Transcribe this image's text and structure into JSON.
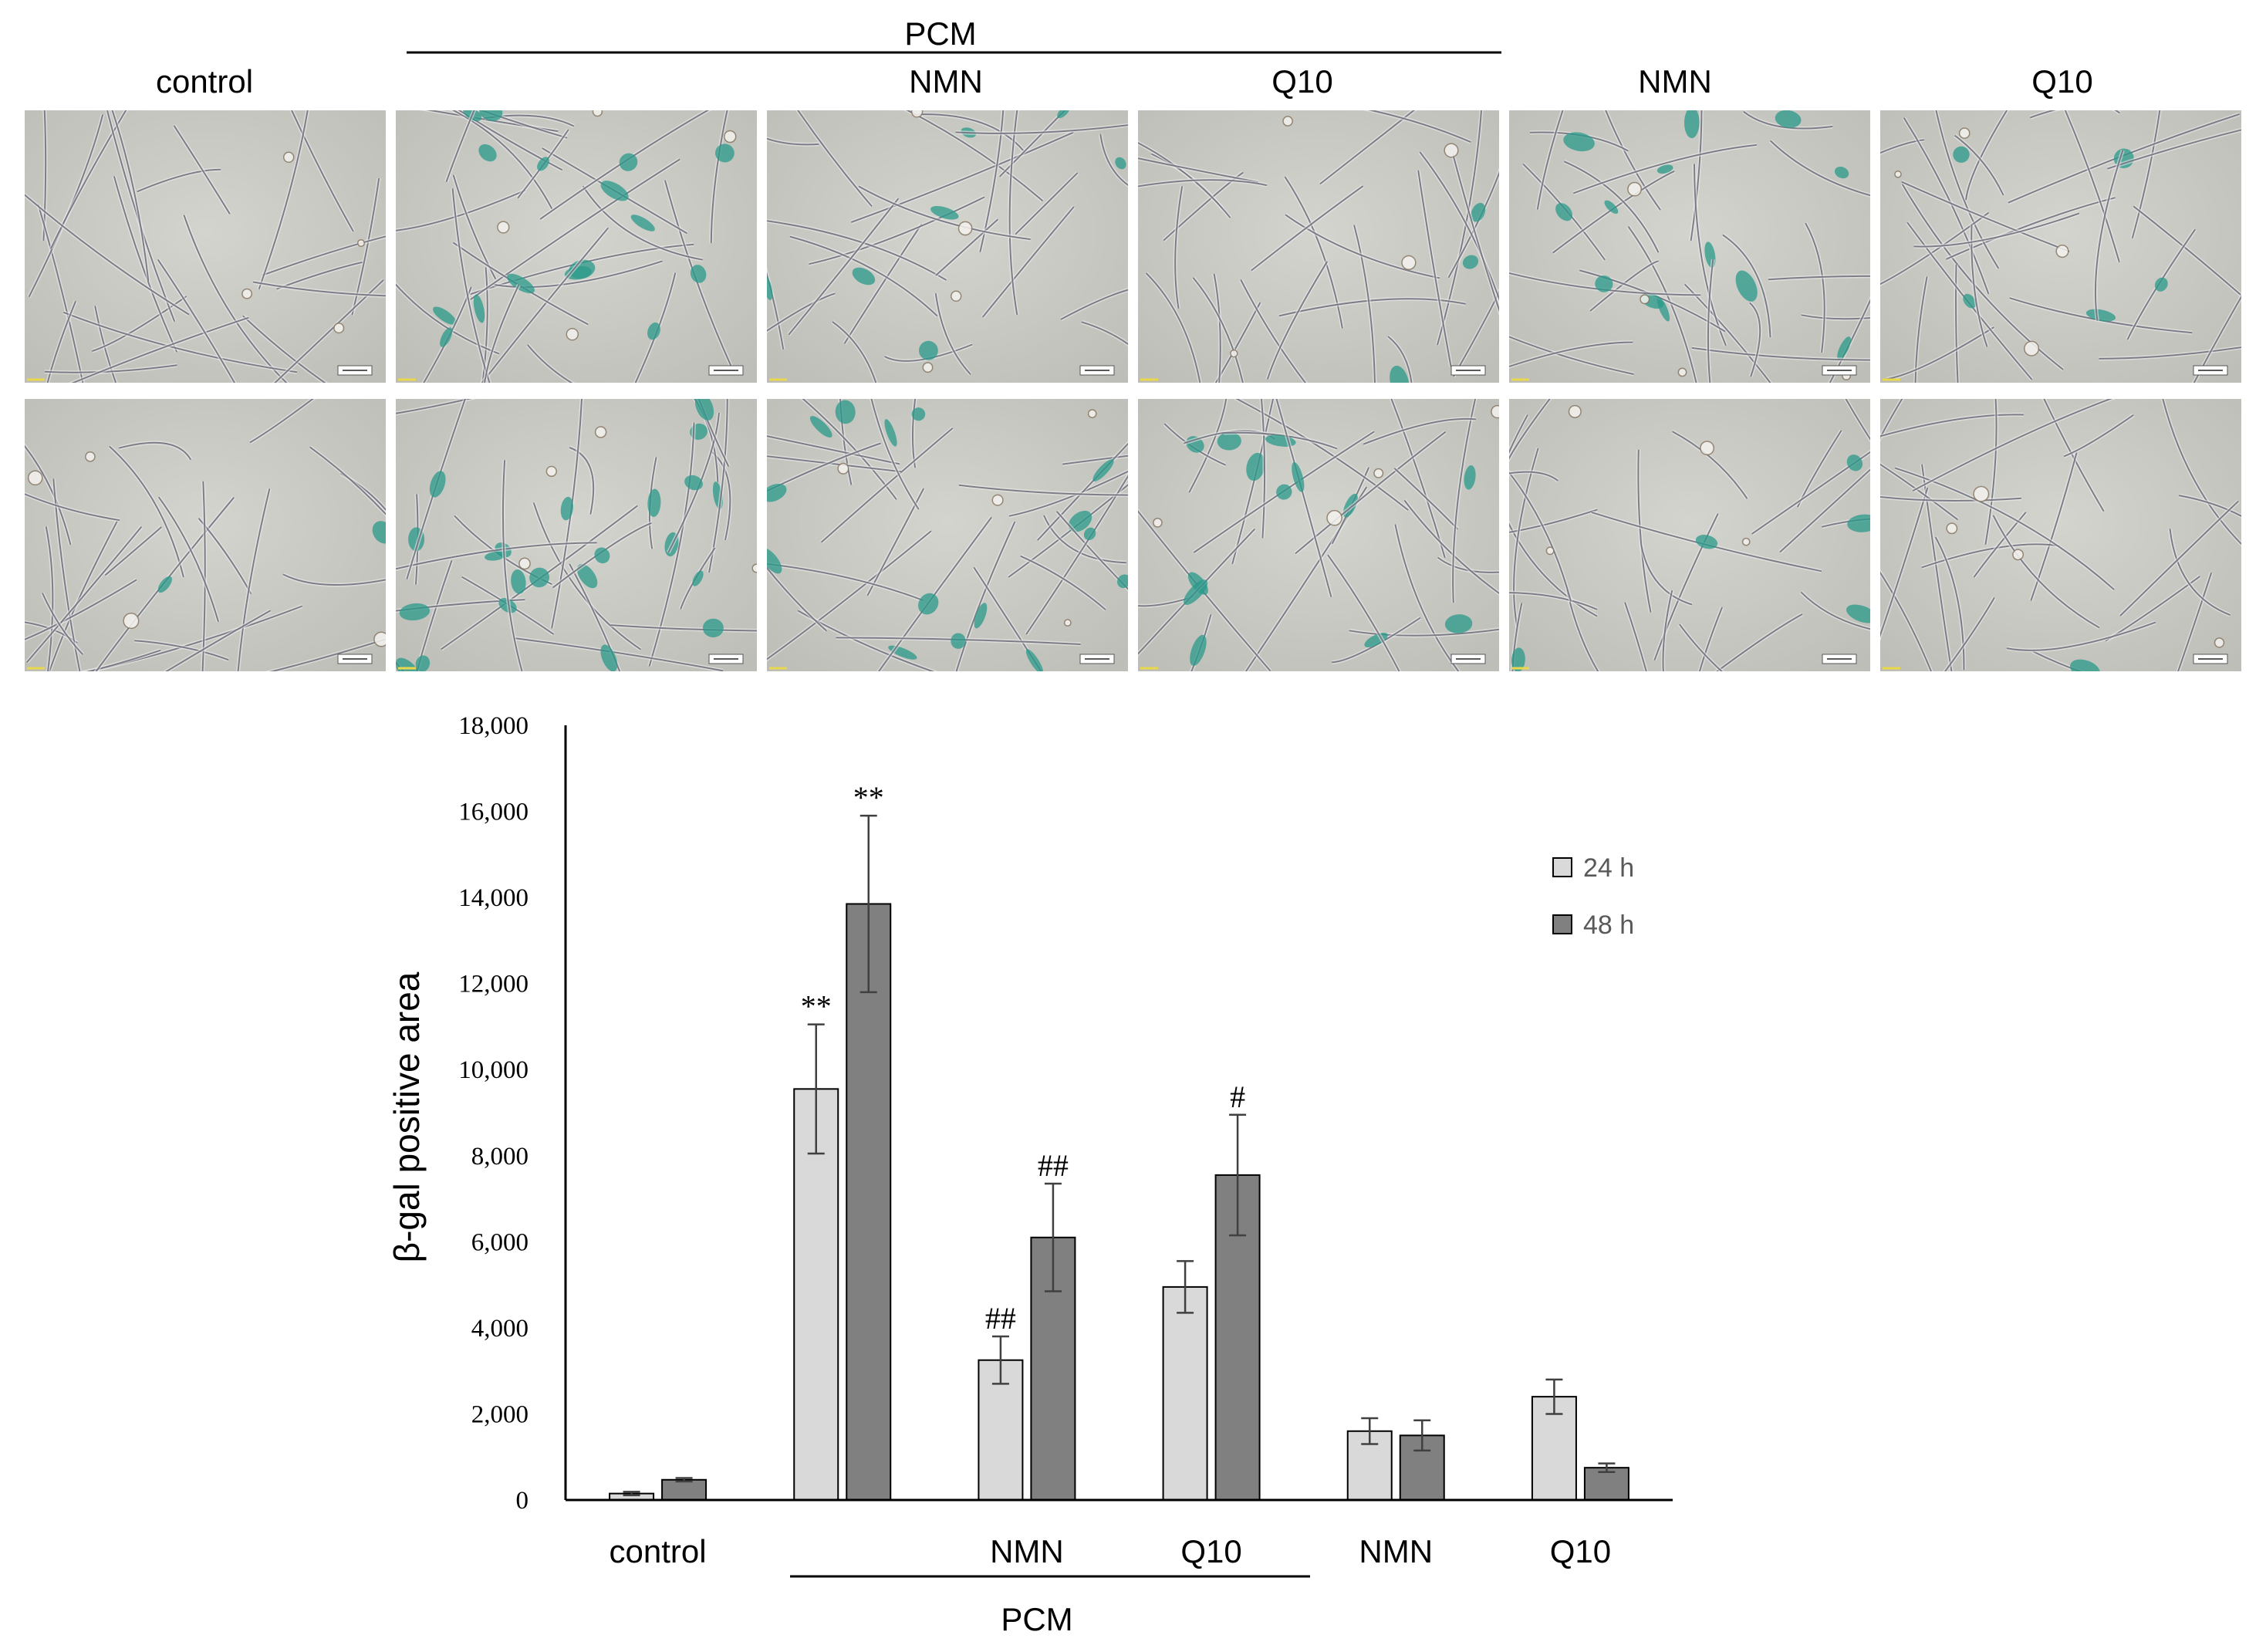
{
  "panel_headers": {
    "pcm": "PCM",
    "columns": [
      "control",
      "",
      "NMN",
      "Q10",
      "NMN",
      "Q10"
    ]
  },
  "micrographs": {
    "rows": 2,
    "columns": 6,
    "stain_level": [
      [
        0.02,
        0.75,
        0.35,
        0.35,
        0.45,
        0.15
      ],
      [
        0.1,
        0.7,
        0.5,
        0.45,
        0.15,
        0.05
      ]
    ]
  },
  "chart_data": {
    "type": "bar",
    "ylabel": "β-gal positive area",
    "ylim": [
      0,
      18000
    ],
    "yticks": [
      0,
      2000,
      4000,
      6000,
      8000,
      10000,
      12000,
      14000,
      16000,
      18000
    ],
    "ytick_labels": [
      "0",
      "2,000",
      "4,000",
      "6,000",
      "8,000",
      "10,000",
      "12,000",
      "14,000",
      "16,000",
      "18,000"
    ],
    "categories": [
      "control",
      "",
      "NMN",
      "Q10",
      "NMN",
      "Q10"
    ],
    "group_label": "PCM",
    "legend_position": "right",
    "series": [
      {
        "name": "24 h",
        "color": "#d9d9d9",
        "values": [
          150,
          9550,
          3250,
          4950,
          1600,
          2400
        ],
        "errors": [
          40,
          1500,
          550,
          600,
          300,
          400
        ],
        "significance": [
          "",
          "**",
          "##",
          "",
          "",
          ""
        ]
      },
      {
        "name": "48 h",
        "color": "#808080",
        "values": [
          470,
          13850,
          6100,
          7550,
          1500,
          750
        ],
        "errors": [
          40,
          2050,
          1250,
          1400,
          350,
          100
        ],
        "significance": [
          "",
          "**",
          "##",
          "#",
          "",
          ""
        ]
      }
    ]
  }
}
